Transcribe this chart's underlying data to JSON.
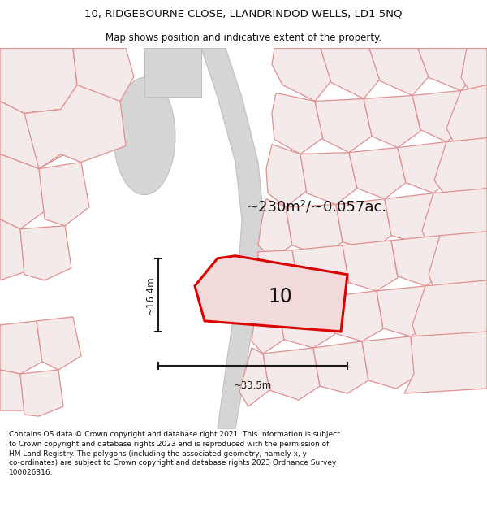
{
  "title_line1": "10, RIDGEBOURNE CLOSE, LLANDRINDOD WELLS, LD1 5NQ",
  "title_line2": "Map shows position and indicative extent of the property.",
  "footer_text": "Contains OS data © Crown copyright and database right 2021. This information is subject to Crown copyright and database rights 2023 and is reproduced with the permission of HM Land Registry. The polygons (including the associated geometry, namely x, y co-ordinates) are subject to Crown copyright and database rights 2023 Ordnance Survey 100026316.",
  "area_text": "~230m²/~0.057ac.",
  "label_10": "10",
  "dim_width": "~33.5m",
  "dim_height": "~16.4m",
  "bg_color": "#ffffff",
  "map_bg": "#faf5f5",
  "plot_stroke": "#dd0000",
  "plot_fill": "#f2dada",
  "dim_color": "#1a1a1a",
  "text_color": "#111111",
  "road_gray_fill": "#d8d8d8",
  "road_gray_stroke": "#bbbbbb",
  "road_gray2_fill": "#e2e2e2",
  "pink_fill": "#f5eaea",
  "pink_stroke": "#e09090",
  "title_fontsize": 9.5,
  "subtitle_fontsize": 8.5,
  "footer_fontsize": 6.5,
  "area_fontsize": 13,
  "label_fontsize": 17,
  "dim_fontsize": 8.5
}
